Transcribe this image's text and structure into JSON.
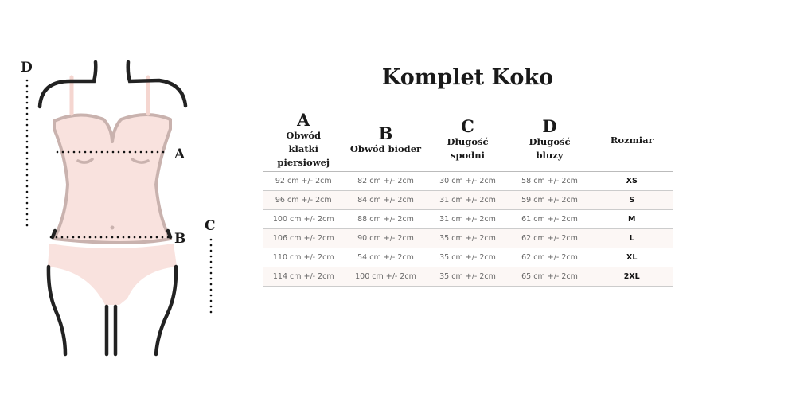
{
  "title": "Komplet Koko",
  "diagram_labels": {
    "a": "A",
    "b": "B",
    "c": "C",
    "d": "D"
  },
  "table": {
    "headers": [
      {
        "letter": "A",
        "text": "Obwód klatki piersiowej"
      },
      {
        "letter": "B",
        "text": "Obwód bioder"
      },
      {
        "letter": "C",
        "text": "Długość spodni"
      },
      {
        "letter": "D",
        "text": "Długość bluzy"
      },
      {
        "letter": "",
        "text": "Rozmiar"
      }
    ],
    "rows": [
      [
        "92 cm +/- 2cm",
        "82 cm +/- 2cm",
        "30 cm +/- 2cm",
        "58 cm +/- 2cm",
        "XS"
      ],
      [
        "96 cm +/- 2cm",
        "84 cm +/- 2cm",
        "31 cm +/- 2cm",
        "59 cm +/- 2cm",
        "S"
      ],
      [
        "100 cm +/- 2cm",
        "88 cm +/- 2cm",
        "31 cm +/- 2cm",
        "61 cm +/- 2cm",
        "M"
      ],
      [
        "106 cm +/- 2cm",
        "90 cm +/- 2cm",
        "35 cm +/- 2cm",
        "62 cm +/- 2cm",
        "L"
      ],
      [
        "110 cm +/- 2cm",
        "54 cm +/- 2cm",
        "35 cm +/- 2cm",
        "62 cm +/- 2cm",
        "XL"
      ],
      [
        "114 cm +/- 2cm",
        "100 cm +/- 2cm",
        "35 cm +/- 2cm",
        "65 cm +/- 2cm",
        "2XL"
      ]
    ]
  },
  "colors": {
    "garment": "#f9e2de",
    "outline": "#c9b2ae",
    "body": "#222222"
  }
}
